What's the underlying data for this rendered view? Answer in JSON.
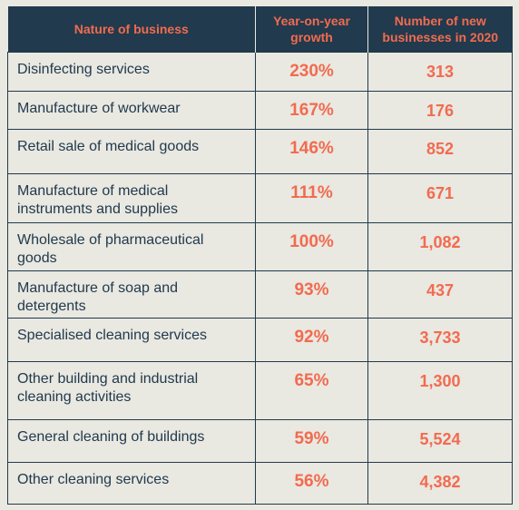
{
  "headers": {
    "nature": "Nature of business",
    "growth": "Year-on-year growth",
    "count": "Number of new businesses in 2020"
  },
  "rows": [
    {
      "name": "Disinfecting services",
      "growth": "230%",
      "count": "313"
    },
    {
      "name": "Manufacture of  workwear",
      "growth": "167%",
      "count": "176"
    },
    {
      "name": "Retail sale of medical goods",
      "growth": "146%",
      "count": "852"
    },
    {
      "name": "Manufacture of medical instruments and supplies",
      "growth": "111%",
      "count": "671"
    },
    {
      "name": "Wholesale of pharmaceutical goods",
      "growth": "100%",
      "count": "1,082"
    },
    {
      "name": "Manufacture of soap and detergents",
      "growth": "93%",
      "count": "437"
    },
    {
      "name": "Specialised cleaning services",
      "growth": "92%",
      "count": "3,733"
    },
    {
      "name": "Other building and industrial cleaning activities",
      "growth": "65%",
      "count": "1,300"
    },
    {
      "name": "General cleaning of buildings",
      "growth": "59%",
      "count": "5,524"
    },
    {
      "name": "Other cleaning services",
      "growth": "56%",
      "count": "4,382"
    }
  ]
}
